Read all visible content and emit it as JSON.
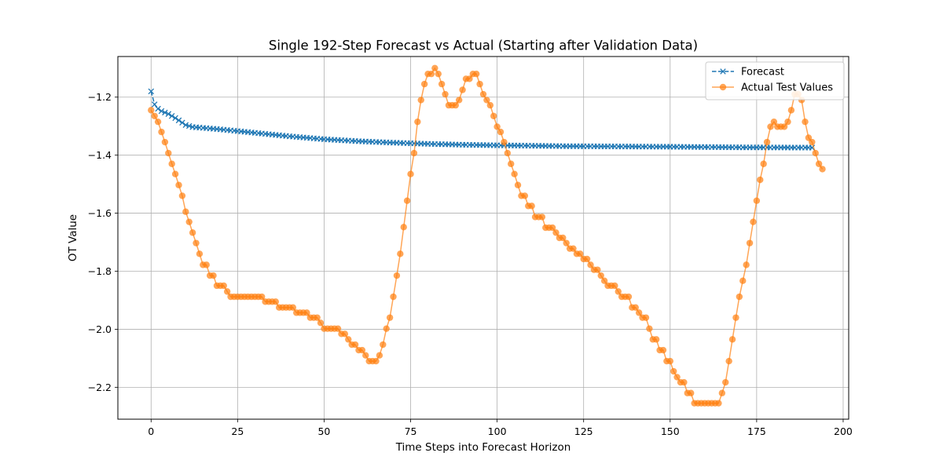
{
  "chart_data": {
    "type": "line",
    "title": "Single 192-Step Forecast vs Actual (Starting after Validation Data)",
    "xlabel": "Time Steps into Forecast Horizon",
    "ylabel": "OT Value",
    "xlim": [
      -9.6,
      201.6
    ],
    "ylim": [
      -2.31,
      -1.06
    ],
    "x_ticks": [
      0,
      25,
      50,
      75,
      100,
      125,
      150,
      175,
      200
    ],
    "x_tick_labels": [
      "0",
      "25",
      "50",
      "75",
      "100",
      "125",
      "150",
      "175",
      "200"
    ],
    "y_ticks": [
      -1.2,
      -1.4,
      -1.6,
      -1.8,
      -2.0,
      -2.2
    ],
    "y_tick_labels": [
      "−1.2",
      "−1.4",
      "−1.6",
      "−1.8",
      "−2.0",
      "−2.2"
    ],
    "grid": true,
    "legend_position": "top-right",
    "series": [
      {
        "name": "Forecast",
        "color": "#1f77b4",
        "marker": "x",
        "linestyle": "dashed",
        "anchors": [
          [
            0,
            -1.18
          ],
          [
            1,
            -1.225
          ],
          [
            2,
            -1.24
          ],
          [
            3,
            -1.248
          ],
          [
            5,
            -1.258
          ],
          [
            7,
            -1.272
          ],
          [
            10,
            -1.296
          ],
          [
            12,
            -1.303
          ],
          [
            20,
            -1.311
          ],
          [
            30,
            -1.323
          ],
          [
            40,
            -1.335
          ],
          [
            50,
            -1.345
          ],
          [
            60,
            -1.352
          ],
          [
            70,
            -1.357
          ],
          [
            80,
            -1.361
          ],
          [
            90,
            -1.364
          ],
          [
            100,
            -1.366
          ],
          [
            120,
            -1.369
          ],
          [
            150,
            -1.371
          ],
          [
            170,
            -1.373
          ],
          [
            191,
            -1.374
          ]
        ]
      },
      {
        "name": "Actual Test Values",
        "color": "#ff7f0e",
        "marker": "o",
        "linestyle": "solid",
        "values": [
          -1.245,
          -1.265,
          -1.285,
          -1.32,
          -1.355,
          -1.393,
          -1.43,
          -1.465,
          -1.503,
          -1.54,
          -1.595,
          -1.63,
          -1.667,
          -1.703,
          -1.74,
          -1.778,
          -1.778,
          -1.815,
          -1.815,
          -1.85,
          -1.85,
          -1.85,
          -1.87,
          -1.888,
          -1.888,
          -1.888,
          -1.888,
          -1.888,
          -1.888,
          -1.888,
          -1.888,
          -1.888,
          -1.888,
          -1.905,
          -1.905,
          -1.905,
          -1.905,
          -1.925,
          -1.925,
          -1.925,
          -1.925,
          -1.925,
          -1.943,
          -1.943,
          -1.943,
          -1.943,
          -1.96,
          -1.96,
          -1.96,
          -1.978,
          -1.998,
          -1.998,
          -1.998,
          -1.998,
          -1.998,
          -2.016,
          -2.016,
          -2.035,
          -2.053,
          -2.053,
          -2.072,
          -2.072,
          -2.09,
          -2.11,
          -2.11,
          -2.11,
          -2.09,
          -2.053,
          -1.998,
          -1.96,
          -1.888,
          -1.815,
          -1.74,
          -1.648,
          -1.557,
          -1.465,
          -1.393,
          -1.285,
          -1.21,
          -1.155,
          -1.12,
          -1.12,
          -1.1,
          -1.12,
          -1.155,
          -1.19,
          -1.228,
          -1.228,
          -1.228,
          -1.21,
          -1.175,
          -1.137,
          -1.137,
          -1.12,
          -1.12,
          -1.155,
          -1.19,
          -1.21,
          -1.228,
          -1.265,
          -1.302,
          -1.32,
          -1.355,
          -1.393,
          -1.43,
          -1.465,
          -1.503,
          -1.54,
          -1.54,
          -1.575,
          -1.575,
          -1.613,
          -1.613,
          -1.613,
          -1.65,
          -1.65,
          -1.65,
          -1.667,
          -1.685,
          -1.685,
          -1.703,
          -1.722,
          -1.722,
          -1.74,
          -1.74,
          -1.758,
          -1.758,
          -1.778,
          -1.795,
          -1.795,
          -1.815,
          -1.833,
          -1.85,
          -1.85,
          -1.85,
          -1.87,
          -1.888,
          -1.888,
          -1.888,
          -1.925,
          -1.925,
          -1.943,
          -1.96,
          -1.96,
          -1.998,
          -2.035,
          -2.035,
          -2.072,
          -2.072,
          -2.11,
          -2.11,
          -2.145,
          -2.165,
          -2.183,
          -2.183,
          -2.22,
          -2.22,
          -2.255,
          -2.255,
          -2.255,
          -2.255,
          -2.255,
          -2.255,
          -2.255,
          -2.255,
          -2.22,
          -2.183,
          -2.11,
          -2.035,
          -1.96,
          -1.888,
          -1.833,
          -1.778,
          -1.703,
          -1.63,
          -1.557,
          -1.485,
          -1.43,
          -1.355,
          -1.302,
          -1.285,
          -1.302,
          -1.302,
          -1.302,
          -1.285,
          -1.245,
          -1.19,
          -1.19,
          -1.21,
          -1.285,
          -1.34,
          -1.355,
          -1.393,
          -1.43,
          -1.448
        ]
      }
    ]
  }
}
